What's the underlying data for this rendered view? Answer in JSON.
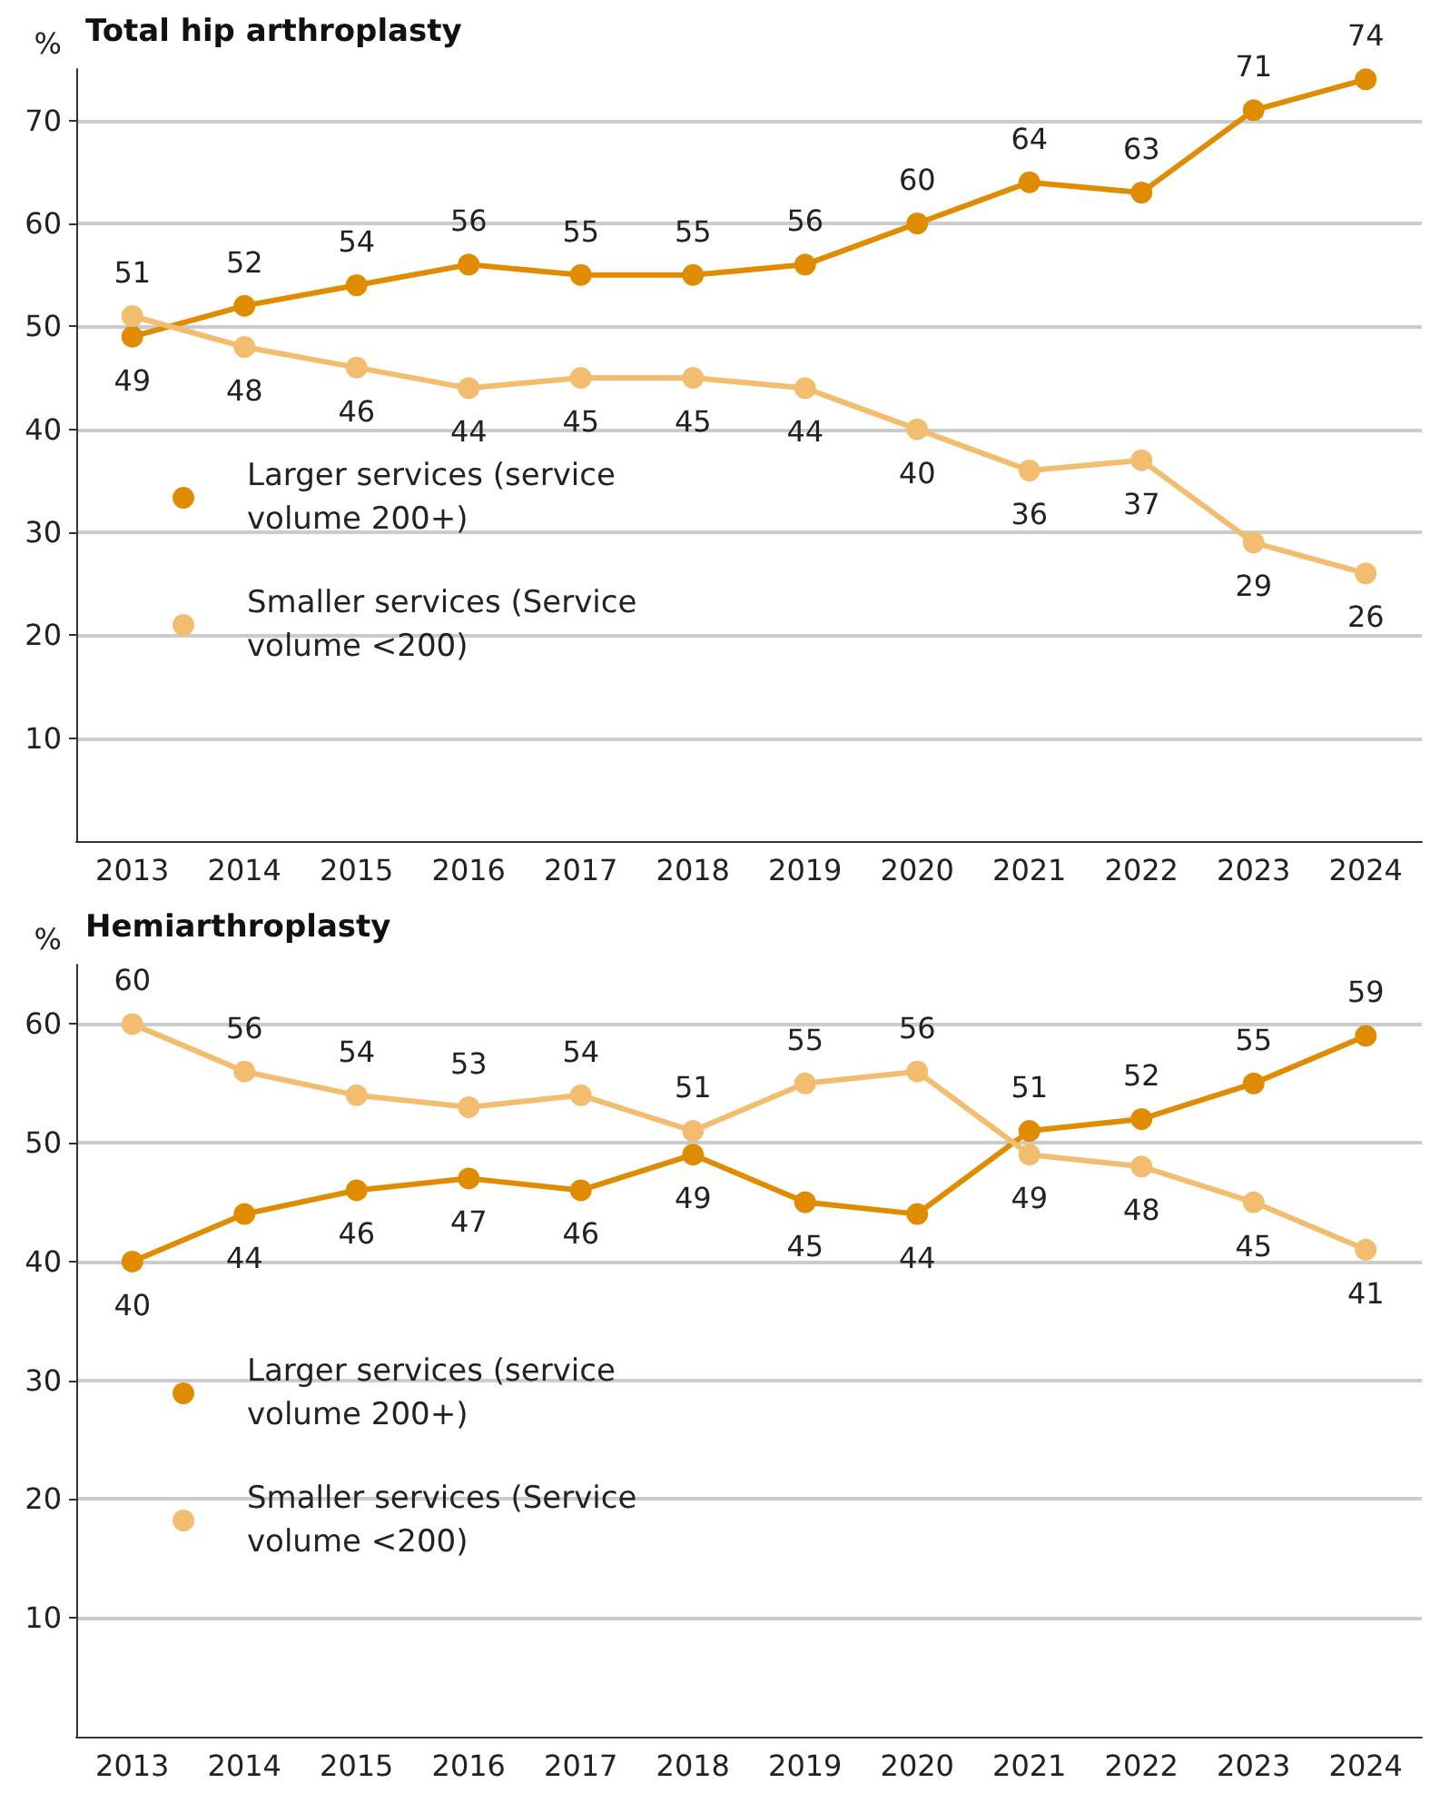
{
  "chart_data": [
    {
      "type": "line",
      "title": "Total hip arthroplasty",
      "ylabel": "%",
      "categories": [
        "2013",
        "2014",
        "2015",
        "2016",
        "2017",
        "2018",
        "2019",
        "2020",
        "2021",
        "2022",
        "2023",
        "2024"
      ],
      "series": [
        {
          "name": "Larger services (service volume 200+)",
          "color": "#e08c00",
          "values": [
            49,
            52,
            54,
            56,
            55,
            55,
            56,
            60,
            64,
            63,
            71,
            74
          ]
        },
        {
          "name": "Smaller services (Service volume <200)",
          "color": "#f2bd6e",
          "values": [
            51,
            48,
            46,
            44,
            45,
            45,
            44,
            40,
            36,
            37,
            29,
            26
          ]
        }
      ],
      "ylim": [
        0,
        75
      ],
      "yticks": [
        10,
        20,
        30,
        40,
        50,
        60,
        70
      ],
      "grid": "y",
      "legend": "left",
      "marker": "circle",
      "data_labels": true
    },
    {
      "type": "line",
      "title": "Hemiarthroplasty",
      "ylabel": "%",
      "categories": [
        "2013",
        "2014",
        "2015",
        "2016",
        "2017",
        "2018",
        "2019",
        "2020",
        "2021",
        "2022",
        "2023",
        "2024"
      ],
      "series": [
        {
          "name": "Larger services (service volume 200+)",
          "color": "#e08c00",
          "values": [
            40,
            44,
            46,
            47,
            46,
            49,
            45,
            44,
            51,
            52,
            55,
            59
          ]
        },
        {
          "name": "Smaller services (Service volume <200)",
          "color": "#f2bd6e",
          "values": [
            60,
            56,
            54,
            53,
            54,
            51,
            55,
            56,
            49,
            48,
            45,
            41
          ]
        }
      ],
      "ylim": [
        0,
        65
      ],
      "yticks": [
        10,
        20,
        30,
        40,
        50,
        60
      ],
      "grid": "y",
      "legend": "left",
      "marker": "circle",
      "data_labels": true
    }
  ]
}
